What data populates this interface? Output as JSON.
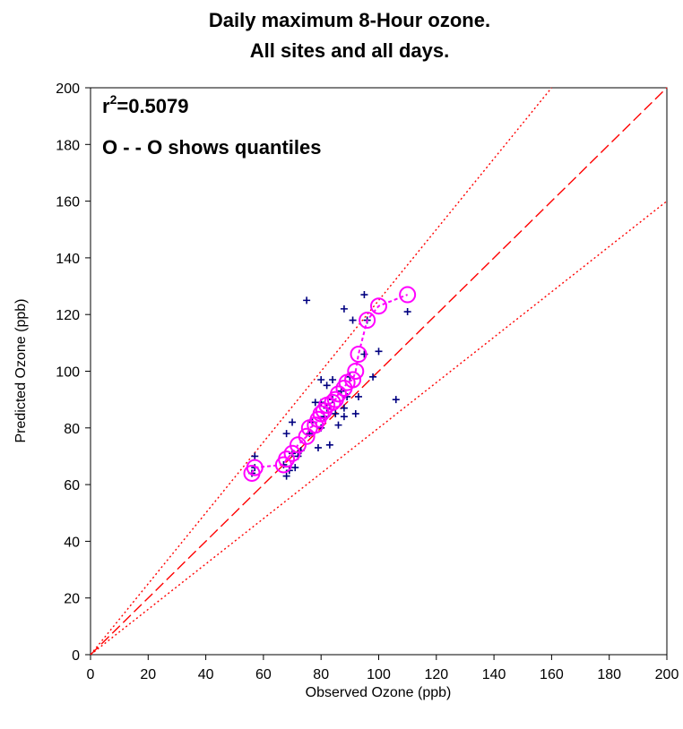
{
  "chart_data": {
    "type": "scatter",
    "title_line1": "Daily maximum 8-Hour ozone.",
    "title_line2": "All sites and all days.",
    "xlabel": "Observed Ozone (ppb)",
    "ylabel": "Predicted Ozone (ppb)",
    "xlim": [
      0,
      200
    ],
    "ylim": [
      0,
      200
    ],
    "xticks": [
      0,
      20,
      40,
      60,
      80,
      100,
      120,
      140,
      160,
      180,
      200
    ],
    "yticks": [
      0,
      20,
      40,
      60,
      80,
      100,
      120,
      140,
      160,
      180,
      200
    ],
    "grid": false,
    "annotations": {
      "r2_prefix": "r",
      "r2_sup": "2",
      "r2_value": "=0.5079",
      "quantile_note": "O - - O shows quantiles"
    },
    "reference_lines": [
      {
        "kind": "one-to-one",
        "style": "dashed",
        "color": "#ff0000",
        "slope": 1.0
      },
      {
        "kind": "upper",
        "style": "dotted",
        "color": "#ff0000",
        "slope": 1.25
      },
      {
        "kind": "lower",
        "style": "dotted",
        "color": "#ff0000",
        "slope": 0.8
      }
    ],
    "series": [
      {
        "marker": "plus",
        "color": "#000080",
        "points": [
          [
            56,
            64
          ],
          [
            57,
            66
          ],
          [
            57,
            70
          ],
          [
            67,
            67
          ],
          [
            68,
            63
          ],
          [
            68,
            78
          ],
          [
            69,
            65
          ],
          [
            70,
            71
          ],
          [
            70,
            82
          ],
          [
            71,
            66
          ],
          [
            72,
            70
          ],
          [
            73,
            72
          ],
          [
            75,
            125
          ],
          [
            76,
            78
          ],
          [
            77,
            82
          ],
          [
            78,
            89
          ],
          [
            79,
            73
          ],
          [
            80,
            80
          ],
          [
            80,
            89
          ],
          [
            80,
            97
          ],
          [
            81,
            84
          ],
          [
            82,
            87
          ],
          [
            82,
            95
          ],
          [
            83,
            74
          ],
          [
            84,
            90
          ],
          [
            84,
            97
          ],
          [
            85,
            85
          ],
          [
            86,
            81
          ],
          [
            87,
            93
          ],
          [
            88,
            84
          ],
          [
            88,
            87
          ],
          [
            88,
            122
          ],
          [
            89,
            91
          ],
          [
            90,
            98
          ],
          [
            91,
            118
          ],
          [
            92,
            85
          ],
          [
            93,
            91
          ],
          [
            95,
            106
          ],
          [
            95,
            127
          ],
          [
            96,
            118
          ],
          [
            98,
            98
          ],
          [
            100,
            107
          ],
          [
            106,
            90
          ],
          [
            110,
            121
          ]
        ]
      },
      {
        "marker": "circle",
        "color": "#ff00ff",
        "points": [
          [
            56,
            64
          ],
          [
            57,
            66
          ],
          [
            67,
            67
          ],
          [
            68,
            69
          ],
          [
            70,
            71
          ],
          [
            72,
            74
          ],
          [
            75,
            77
          ],
          [
            76,
            80
          ],
          [
            78,
            81
          ],
          [
            79,
            83
          ],
          [
            80,
            85
          ],
          [
            81,
            86
          ],
          [
            82,
            88
          ],
          [
            84,
            89
          ],
          [
            85,
            90
          ],
          [
            86,
            92
          ],
          [
            88,
            94
          ],
          [
            89,
            96
          ],
          [
            91,
            97
          ],
          [
            92,
            100
          ],
          [
            93,
            106
          ],
          [
            96,
            118
          ],
          [
            100,
            123
          ],
          [
            110,
            127
          ]
        ]
      }
    ]
  }
}
